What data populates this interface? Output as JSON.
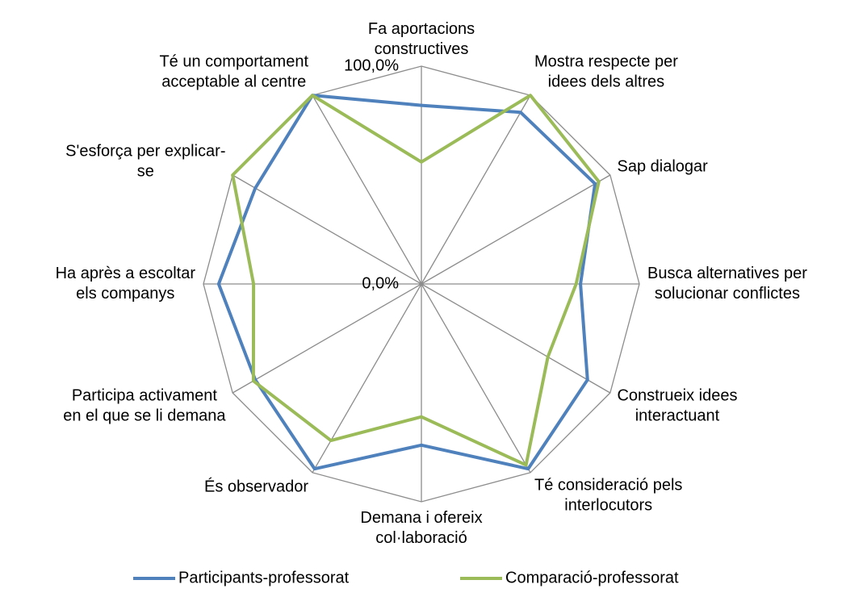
{
  "chart_data": {
    "type": "radar",
    "categories": [
      [
        "Fa aportacions",
        "constructives"
      ],
      [
        "Mostra respecte per",
        "idees dels altres"
      ],
      [
        "Sap dialogar"
      ],
      [
        "Busca alternatives per",
        "solucionar conflictes"
      ],
      [
        "Construeix idees",
        "interactuant"
      ],
      [
        "Té consideració pels",
        "interlocutors"
      ],
      [
        "Demana i ofereix",
        "col·laboració"
      ],
      [
        "És observador"
      ],
      [
        "Participa activament",
        "en el que se li demana"
      ],
      [
        "Ha après a escoltar",
        "els companys"
      ],
      [
        "S'esforça per explicar-",
        "se"
      ],
      [
        "Té un comportament",
        "acceptable al centre"
      ]
    ],
    "series": [
      {
        "name": "Participants-professorat",
        "color": "#4f81bd",
        "values": [
          82,
          91,
          92,
          73,
          88,
          98,
          74,
          98,
          88,
          93,
          88,
          100
        ]
      },
      {
        "name": "Comparació-professorat",
        "color": "#9bbb59",
        "values": [
          56,
          100,
          94,
          71,
          67,
          96,
          61,
          83,
          89,
          77,
          100,
          100
        ]
      }
    ],
    "rlim": [
      0,
      100
    ],
    "rticks": [
      {
        "value": 0,
        "label": "0,0%"
      },
      {
        "value": 100,
        "label": "100,0%"
      }
    ],
    "legend": "bottom"
  }
}
